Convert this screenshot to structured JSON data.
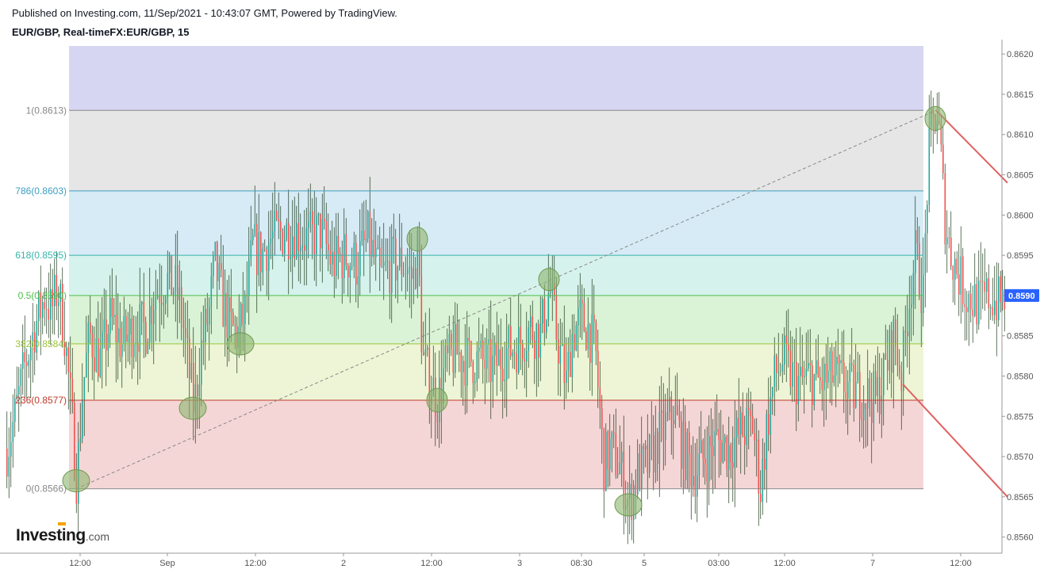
{
  "header": {
    "published": "Published on Investing.com, 11/Sep/2021 - 10:43:07 GMT, Powered by TradingView.",
    "symbol": "EUR/GBP, Real-timeFX:EUR/GBP, 15"
  },
  "logo": {
    "word": "Investing",
    "suffix": ".com"
  },
  "colors": {
    "up": "#26a69a",
    "down": "#ef5350",
    "last_price_bg": "#2962ff",
    "zone_top": "#d6d6f2",
    "zone_100_786": "#e6e6e6",
    "zone_786_618": "#d6ebf5",
    "zone_618_50": "#d6f2ec",
    "zone_50_382": "#daf2d6",
    "zone_382_236": "#edf5d6",
    "zone_236_0": "#f5d6d6",
    "trend_line": "#888888",
    "red_line": "#e06060",
    "circle_fill": "#8cb46e"
  },
  "chart_data": {
    "type": "candlestick",
    "title": "EUR/GBP, Real-timeFX:EUR/GBP, 15",
    "ylim": [
      0.8558,
      0.8621
    ],
    "y_ticks": [
      "0.8620",
      "0.8615",
      "0.8610",
      "0.8605",
      "0.8600",
      "0.8595",
      "0.8590",
      "0.8585",
      "0.8580",
      "0.8575",
      "0.8570",
      "0.8565",
      "0.8560"
    ],
    "x_ticks": [
      "12:00",
      "Sep",
      "12:00",
      "2",
      "12:00",
      "3",
      "08:30",
      "5",
      "03:00",
      "12:00",
      "7",
      "12:00"
    ],
    "last_price": "0.8590",
    "fib_levels": [
      {
        "label": "1(0.8613)",
        "value": 0.8613,
        "color": "#888888"
      },
      {
        "label": "786(0.8603)",
        "value": 0.8603,
        "color": "#3d9fc4"
      },
      {
        "label": "618(0.8595)",
        "value": 0.8595,
        "color": "#36b4a8"
      },
      {
        "label": "0.5(0.8590)",
        "value": 0.859,
        "color": "#4bbf4b"
      },
      {
        "label": "382(0.8584)",
        "value": 0.8584,
        "color": "#9cc43a"
      },
      {
        "label": "236(0.8577)",
        "value": 0.8577,
        "color": "#c0392b"
      },
      {
        "label": "0(0.8566)",
        "value": 0.8566,
        "color": "#888888"
      }
    ],
    "price_path": [
      [
        0,
        0.8571
      ],
      [
        10,
        0.8575
      ],
      [
        22,
        0.8581
      ],
      [
        35,
        0.8586
      ],
      [
        48,
        0.859
      ],
      [
        56,
        0.8588
      ],
      [
        64,
        0.8591
      ],
      [
        72,
        0.8586
      ],
      [
        80,
        0.8577
      ],
      [
        88,
        0.8567
      ],
      [
        95,
        0.8578
      ],
      [
        104,
        0.8585
      ],
      [
        118,
        0.8582
      ],
      [
        130,
        0.8587
      ],
      [
        145,
        0.8584
      ],
      [
        160,
        0.8586
      ],
      [
        175,
        0.8586
      ],
      [
        185,
        0.859
      ],
      [
        200,
        0.8592
      ],
      [
        212,
        0.8591
      ],
      [
        220,
        0.8588
      ],
      [
        230,
        0.858
      ],
      [
        236,
        0.8576
      ],
      [
        244,
        0.8583
      ],
      [
        255,
        0.8588
      ],
      [
        262,
        0.8594
      ],
      [
        272,
        0.8589
      ],
      [
        282,
        0.8586
      ],
      [
        292,
        0.8585
      ],
      [
        300,
        0.8588
      ],
      [
        310,
        0.8596
      ],
      [
        320,
        0.8595
      ],
      [
        332,
        0.8597
      ],
      [
        350,
        0.8598
      ],
      [
        365,
        0.8598
      ],
      [
        380,
        0.8597
      ],
      [
        395,
        0.8598
      ],
      [
        410,
        0.8594
      ],
      [
        425,
        0.8595
      ],
      [
        440,
        0.8594
      ],
      [
        455,
        0.8597
      ],
      [
        470,
        0.8592
      ],
      [
        485,
        0.8594
      ],
      [
        500,
        0.8594
      ],
      [
        512,
        0.8592
      ],
      [
        518,
        0.8596
      ],
      [
        524,
        0.8582
      ],
      [
        535,
        0.8579
      ],
      [
        543,
        0.8577
      ],
      [
        552,
        0.8581
      ],
      [
        565,
        0.8583
      ],
      [
        580,
        0.8582
      ],
      [
        595,
        0.8582
      ],
      [
        612,
        0.8581
      ],
      [
        628,
        0.8583
      ],
      [
        645,
        0.8584
      ],
      [
        660,
        0.8586
      ],
      [
        672,
        0.8585
      ],
      [
        684,
        0.8591
      ],
      [
        693,
        0.8585
      ],
      [
        705,
        0.8579
      ],
      [
        712,
        0.8585
      ],
      [
        722,
        0.8587
      ],
      [
        732,
        0.8586
      ],
      [
        742,
        0.8583
      ],
      [
        752,
        0.8569
      ],
      [
        760,
        0.8571
      ],
      [
        772,
        0.8569
      ],
      [
        784,
        0.8564
      ],
      [
        795,
        0.8568
      ],
      [
        808,
        0.8569
      ],
      [
        820,
        0.8572
      ],
      [
        832,
        0.8574
      ],
      [
        840,
        0.8576
      ],
      [
        852,
        0.8571
      ],
      [
        866,
        0.8568
      ],
      [
        880,
        0.857
      ],
      [
        895,
        0.8572
      ],
      [
        910,
        0.8571
      ],
      [
        925,
        0.8573
      ],
      [
        940,
        0.8574
      ],
      [
        950,
        0.8566
      ],
      [
        958,
        0.8574
      ],
      [
        968,
        0.858
      ],
      [
        978,
        0.8582
      ],
      [
        990,
        0.858
      ],
      [
        1000,
        0.8579
      ],
      [
        1012,
        0.858
      ],
      [
        1025,
        0.8579
      ],
      [
        1040,
        0.858
      ],
      [
        1055,
        0.8579
      ],
      [
        1068,
        0.8578
      ],
      [
        1080,
        0.8578
      ],
      [
        1095,
        0.8577
      ],
      [
        1108,
        0.8581
      ],
      [
        1118,
        0.8585
      ],
      [
        1128,
        0.858
      ],
      [
        1136,
        0.8589
      ],
      [
        1145,
        0.8595
      ],
      [
        1155,
        0.859
      ],
      [
        1161,
        0.8606
      ],
      [
        1166,
        0.8611
      ],
      [
        1172,
        0.8613
      ],
      [
        1176,
        0.8609
      ],
      [
        1182,
        0.86
      ],
      [
        1188,
        0.8596
      ],
      [
        1198,
        0.8593
      ],
      [
        1210,
        0.859
      ],
      [
        1225,
        0.8589
      ],
      [
        1240,
        0.859
      ],
      [
        1250,
        0.8589
      ],
      [
        1258,
        0.859
      ]
    ],
    "annotations": {
      "trend_line": [
        [
          88,
          0.8566
        ],
        [
          1172,
          0.8613
        ]
      ],
      "red_lines": [
        [
          [
            1172,
            0.8613
          ],
          [
            1262,
            0.8604
          ]
        ],
        [
          [
            1130,
            0.8579
          ],
          [
            1262,
            0.8565
          ]
        ]
      ],
      "circles": [
        [
          88,
          0.8567
        ],
        [
          235,
          0.8576
        ],
        [
          295,
          0.8584
        ],
        [
          518,
          0.8597
        ],
        [
          543,
          0.8577
        ],
        [
          684,
          0.8592
        ],
        [
          784,
          0.8564
        ],
        [
          1171,
          0.8612
        ]
      ]
    }
  }
}
